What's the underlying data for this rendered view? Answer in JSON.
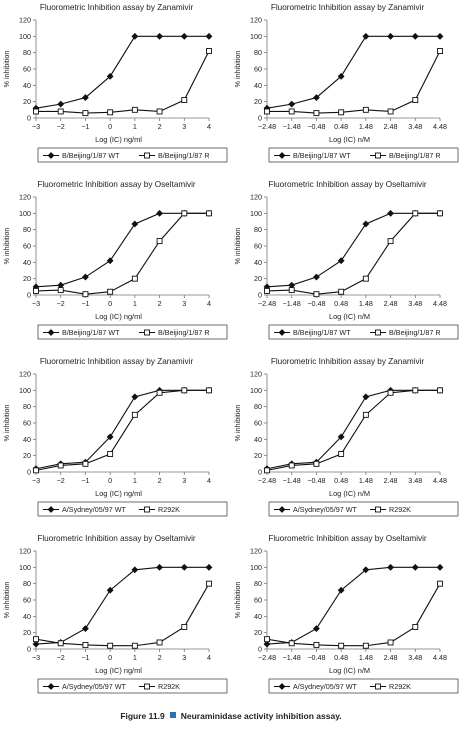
{
  "chart_data": [
    {
      "type": "line",
      "title": "Fluorometric Inhibition assay by Zanamivir",
      "xlabel": "Log (IC) ng/ml",
      "ylabel": "% inhibition",
      "ylim": [
        0,
        120
      ],
      "yticks": [
        "0",
        "20",
        "40",
        "60",
        "80",
        "100",
        "120"
      ],
      "categories": [
        "−3",
        "−2",
        "−1",
        "0",
        "1",
        "2",
        "3",
        "4"
      ],
      "grid": false,
      "legend_position": "bottom",
      "series": [
        {
          "name": "B/Beijing/1/87 WT",
          "marker": "filled-diamond",
          "values": [
            12,
            17,
            25,
            51,
            100,
            100,
            100,
            100
          ]
        },
        {
          "name": "B/Beijing/1/87 R",
          "marker": "open-square",
          "values": [
            8,
            8,
            6,
            7,
            10,
            8,
            22,
            82
          ]
        }
      ]
    },
    {
      "type": "line",
      "title": "Fluorometric Inhibition assay by Zanamivir",
      "xlabel": "Log (IC) n/M",
      "ylabel": "% inhibition",
      "ylim": [
        0,
        120
      ],
      "yticks": [
        "0",
        "20",
        "40",
        "60",
        "80",
        "100",
        "120"
      ],
      "categories": [
        "−2.48",
        "−1.48",
        "−0.48",
        "0.48",
        "1.48",
        "2.48",
        "3.48",
        "4.48"
      ],
      "grid": false,
      "legend_position": "bottom",
      "series": [
        {
          "name": "B/Beijing/1/87 WT",
          "marker": "filled-diamond",
          "values": [
            12,
            17,
            25,
            51,
            100,
            100,
            100,
            100
          ]
        },
        {
          "name": "B/Beijing/1/87 R",
          "marker": "open-square",
          "values": [
            8,
            8,
            6,
            7,
            10,
            8,
            22,
            82
          ]
        }
      ]
    },
    {
      "type": "line",
      "title": "Fluorometric Inhibition assay by Oseltamivir",
      "xlabel": "Log (IC) ng/ml",
      "ylabel": "% inhibition",
      "ylim": [
        0,
        120
      ],
      "yticks": [
        "0",
        "20",
        "40",
        "60",
        "80",
        "100",
        "120"
      ],
      "categories": [
        "−3",
        "−2",
        "−1",
        "0",
        "1",
        "2",
        "3",
        "4"
      ],
      "grid": false,
      "legend_position": "bottom",
      "series": [
        {
          "name": "B/Beijing/1/87 WT",
          "marker": "filled-diamond",
          "values": [
            10,
            12,
            22,
            42,
            87,
            100,
            100,
            100
          ]
        },
        {
          "name": "B/Beijing/1/87 R",
          "marker": "open-square",
          "values": [
            5,
            6,
            1,
            4,
            20,
            66,
            100,
            100
          ]
        }
      ]
    },
    {
      "type": "line",
      "title": "Fluorometric Inhibition assay by Oseltamivir",
      "xlabel": "Log (IC) n/M",
      "ylabel": "% inhibition",
      "ylim": [
        0,
        120
      ],
      "yticks": [
        "0",
        "20",
        "40",
        "60",
        "80",
        "100",
        "120"
      ],
      "categories": [
        "−2.48",
        "−1.48",
        "−0.48",
        "0.48",
        "1.48",
        "2.48",
        "3.48",
        "4.48"
      ],
      "grid": false,
      "legend_position": "bottom",
      "series": [
        {
          "name": "B/Beijing/1/87 WT",
          "marker": "filled-diamond",
          "values": [
            10,
            12,
            22,
            42,
            87,
            100,
            100,
            100
          ]
        },
        {
          "name": "B/Beijing/1/87 R",
          "marker": "open-square",
          "values": [
            5,
            6,
            1,
            4,
            20,
            66,
            100,
            100
          ]
        }
      ]
    },
    {
      "type": "line",
      "title": "Fluorometric Inhibition assay by Zanamivir",
      "xlabel": "Log (IC) ng/ml",
      "ylabel": "% inhibition",
      "ylim": [
        0,
        120
      ],
      "yticks": [
        "0",
        "20",
        "40",
        "60",
        "80",
        "100",
        "120"
      ],
      "categories": [
        "−3",
        "−2",
        "−1",
        "0",
        "1",
        "2",
        "3",
        "4"
      ],
      "grid": false,
      "legend_position": "bottom",
      "series": [
        {
          "name": "A/Sydney/05/97 WT",
          "marker": "filled-diamond",
          "values": [
            4,
            10,
            12,
            43,
            92,
            100,
            100,
            100
          ]
        },
        {
          "name": "R292K",
          "marker": "open-square",
          "values": [
            2,
            8,
            10,
            22,
            70,
            97,
            100,
            100
          ]
        }
      ]
    },
    {
      "type": "line",
      "title": "Fluorometric Inhibition assay by Zanamivir",
      "xlabel": "Log (IC) n/M",
      "ylabel": "% inhibition",
      "ylim": [
        0,
        120
      ],
      "yticks": [
        "0",
        "20",
        "40",
        "60",
        "80",
        "100",
        "120"
      ],
      "categories": [
        "−2.48",
        "−1.48",
        "−0.48",
        "0.48",
        "1.48",
        "2.48",
        "3.48",
        "4.48"
      ],
      "grid": false,
      "legend_position": "bottom",
      "series": [
        {
          "name": "A/Sydney/05/97 WT",
          "marker": "filled-diamond",
          "values": [
            4,
            10,
            12,
            43,
            92,
            100,
            100,
            100
          ]
        },
        {
          "name": "R292K",
          "marker": "open-square",
          "values": [
            2,
            8,
            10,
            22,
            70,
            97,
            100,
            100
          ]
        }
      ]
    },
    {
      "type": "line",
      "title": "Fluorometric Inhibition assay by Oseltamivir",
      "xlabel": "Log (IC) ng/ml",
      "ylabel": "% inhibition",
      "ylim": [
        0,
        120
      ],
      "yticks": [
        "0",
        "20",
        "40",
        "60",
        "80",
        "100",
        "120"
      ],
      "categories": [
        "−3",
        "−2",
        "−1",
        "0",
        "1",
        "2",
        "3",
        "4"
      ],
      "grid": false,
      "legend_position": "bottom",
      "series": [
        {
          "name": "A/Sydney/05/97 WT",
          "marker": "filled-diamond",
          "values": [
            6,
            8,
            25,
            72,
            97,
            100,
            100,
            100
          ]
        },
        {
          "name": "R292K",
          "marker": "open-square",
          "values": [
            12,
            7,
            5,
            4,
            4,
            8,
            27,
            80
          ]
        }
      ]
    },
    {
      "type": "line",
      "title": "Fluorometric Inhibition assay by Oseltamivir",
      "xlabel": "Log (IC) n/M",
      "ylabel": "% inhibition",
      "ylim": [
        0,
        120
      ],
      "yticks": [
        "0",
        "20",
        "40",
        "60",
        "80",
        "100",
        "120"
      ],
      "categories": [
        "−2.48",
        "−1.48",
        "−0.48",
        "0.48",
        "1.48",
        "2.48",
        "3.48",
        "4.48"
      ],
      "grid": false,
      "legend_position": "bottom",
      "series": [
        {
          "name": "A/Sydney/05/97 WT",
          "marker": "filled-diamond",
          "values": [
            6,
            8,
            25,
            72,
            97,
            100,
            100,
            100
          ]
        },
        {
          "name": "R292K",
          "marker": "open-square",
          "values": [
            12,
            7,
            5,
            4,
            4,
            8,
            27,
            80
          ]
        }
      ]
    }
  ],
  "figure": {
    "label": "Figure 11.9",
    "text": "Neuraminidase activity inhibition assay.",
    "marker_color": "#2b73b6"
  }
}
